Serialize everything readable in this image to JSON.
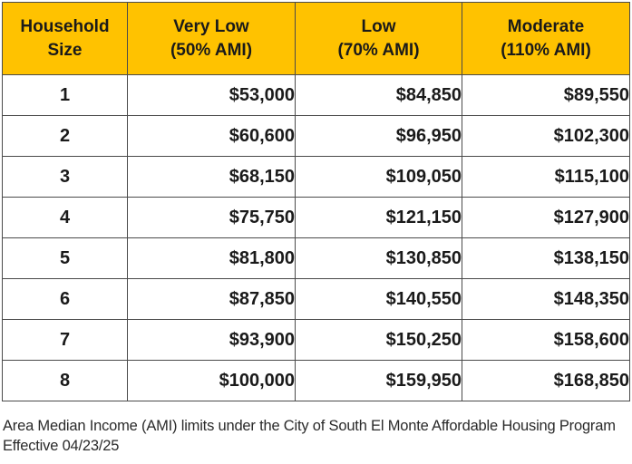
{
  "table": {
    "headers": [
      {
        "line1": "Household",
        "line2": "Size"
      },
      {
        "line1": "Very Low",
        "line2": "(50% AMI)"
      },
      {
        "line1": "Low",
        "line2": "(70% AMI)"
      },
      {
        "line1": "Moderate",
        "line2": "(110% AMI)"
      }
    ],
    "rows": [
      {
        "size": "1",
        "very_low": "$53,000",
        "low": "$84,850",
        "moderate": "$89,550"
      },
      {
        "size": "2",
        "very_low": "$60,600",
        "low": "$96,950",
        "moderate": "$102,300"
      },
      {
        "size": "3",
        "very_low": "$68,150",
        "low": "$109,050",
        "moderate": "$115,100"
      },
      {
        "size": "4",
        "very_low": "$75,750",
        "low": "$121,150",
        "moderate": "$127,900"
      },
      {
        "size": "5",
        "very_low": "$81,800",
        "low": "$130,850",
        "moderate": "$138,150"
      },
      {
        "size": "6",
        "very_low": "$87,850",
        "low": "$140,550",
        "moderate": "$148,350"
      },
      {
        "size": "7",
        "very_low": "$93,900",
        "low": "$150,250",
        "moderate": "$158,600"
      },
      {
        "size": "8",
        "very_low": "$100,000",
        "low": "$159,950",
        "moderate": "$168,850"
      }
    ]
  },
  "caption": {
    "line1": "Area Median Income (AMI) limits under the City of South El Monte Affordable Housing Program",
    "line2": "Effective 04/23/25"
  },
  "colors": {
    "header_background": "#ffc200",
    "border": "#4a4a4a",
    "text": "#1a1a1a"
  }
}
